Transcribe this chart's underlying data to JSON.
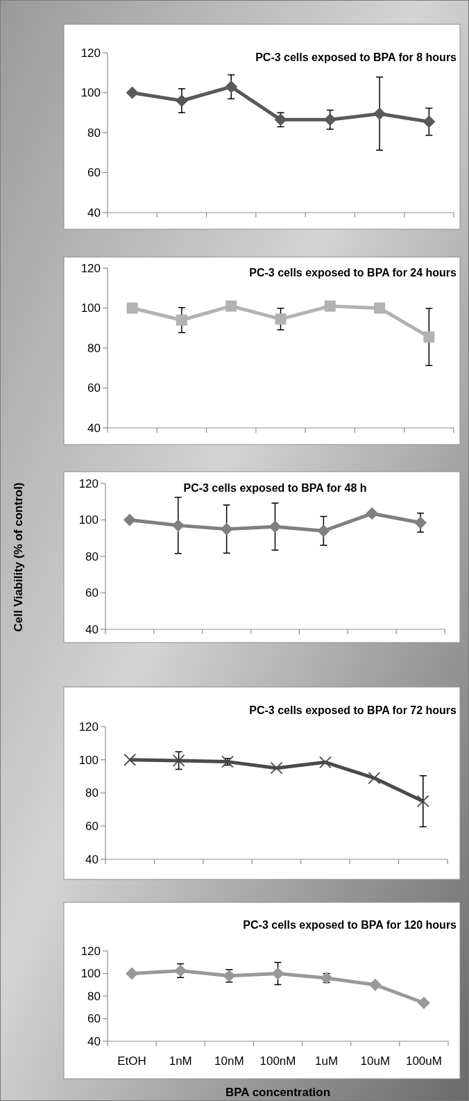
{
  "chart_data": [
    {
      "type": "line",
      "title": "PC-3 cells exposed to BPA for 8 hours",
      "categories": [
        null,
        null,
        null,
        null,
        null,
        null,
        null
      ],
      "marker": "diamond",
      "ylim": [
        40,
        120
      ],
      "yticks": [
        40,
        60,
        80,
        100,
        120
      ],
      "series": [
        {
          "color": "#595959",
          "values": [
            100,
            96,
            103,
            86.5,
            86.5,
            89.5,
            85.5
          ],
          "errors": [
            null,
            6,
            6,
            3.5,
            4.8,
            18.3,
            6.8
          ]
        }
      ]
    },
    {
      "type": "line",
      "title": "PC-3 cells exposed to BPA for 24 hours",
      "categories": [
        null,
        null,
        null,
        null,
        null,
        null,
        null
      ],
      "marker": "square",
      "ylim": [
        40,
        120
      ],
      "yticks": [
        40,
        60,
        80,
        100,
        120
      ],
      "series": [
        {
          "color": "#b2b2b2",
          "values": [
            100,
            94,
            101,
            94.5,
            101,
            100,
            85.5
          ],
          "errors": [
            null,
            6.3,
            null,
            5.4,
            null,
            null,
            14.3
          ]
        }
      ]
    },
    {
      "type": "line",
      "title": "PC-3 cells exposed to BPA for 48 h",
      "ylabel": "Cell Viability (% of control)",
      "categories": [
        null,
        null,
        null,
        null,
        null,
        null,
        null
      ],
      "marker": "diamond",
      "ylim": [
        40,
        120
      ],
      "yticks": [
        40,
        60,
        80,
        100,
        120
      ],
      "series": [
        {
          "color": "#7f7f7f",
          "values": [
            100,
            97,
            95,
            96.3,
            94,
            103.5,
            98.5
          ],
          "errors": [
            null,
            15.4,
            13.2,
            12.9,
            7.9,
            null,
            5.2
          ]
        }
      ]
    },
    {
      "type": "line",
      "title": "PC-3 cells exposed to BPA for 72 hours",
      "categories": [
        null,
        null,
        null,
        null,
        null,
        null,
        null
      ],
      "marker": "cross",
      "ylim": [
        40,
        120
      ],
      "yticks": [
        40,
        60,
        80,
        100,
        120
      ],
      "series": [
        {
          "color": "#4a4a4a",
          "values": [
            100,
            99.5,
            98.8,
            95,
            98.5,
            89,
            75
          ],
          "errors": [
            null,
            5.3,
            2,
            null,
            null,
            null,
            15.4
          ]
        }
      ]
    },
    {
      "type": "line",
      "title": "PC-3 cells exposed to BPA for 120 hours",
      "xlabel": "BPA concentration",
      "categories": [
        "EtOH",
        "1nM",
        "10nM",
        "100nM",
        "1uM",
        "10uM",
        "100uM"
      ],
      "marker": "diamond",
      "ylim": [
        40,
        120
      ],
      "yticks": [
        40,
        60,
        80,
        100,
        120
      ],
      "series": [
        {
          "color": "#999999",
          "values": [
            100,
            102.5,
            98,
            100,
            96,
            90,
            74
          ],
          "errors": [
            null,
            6.1,
            5.5,
            9.9,
            4,
            null,
            null
          ]
        }
      ]
    }
  ]
}
